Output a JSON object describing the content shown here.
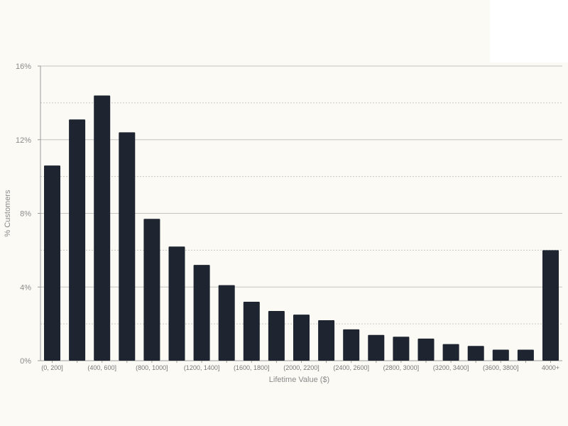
{
  "chart_data": {
    "type": "bar",
    "title": "",
    "xlabel": "Lifetime Value ($)",
    "ylabel": "% Customers",
    "ylim": [
      0,
      16
    ],
    "yticks": [
      0,
      4,
      8,
      12,
      16
    ],
    "ytick_labels": [
      "0%",
      "4%",
      "8%",
      "12%",
      "16%"
    ],
    "minor_gridlines": [
      2,
      6,
      10,
      14
    ],
    "grid": true,
    "legend": "none",
    "bar_color": "#1e2530",
    "categories": [
      "(0, 200]",
      "(200, 400]",
      "(400, 600]",
      "(600, 800]",
      "(800, 1000]",
      "(1000, 1200]",
      "(1200, 1400]",
      "(1400, 1600]",
      "(1600, 1800]",
      "(1800, 2000]",
      "(2000, 2200]",
      "(2200, 2400]",
      "(2400, 2600]",
      "(2600, 2800]",
      "(2800, 3000]",
      "(3000, 3200]",
      "(3200, 3400]",
      "(3400, 3600]",
      "(3600, 3800]",
      "(3800, 4000]",
      "4000+"
    ],
    "visible_tick_labels": [
      "(0, 200]",
      "",
      "(400, 600]",
      "",
      "(800, 1000]",
      "",
      "(1200, 1400]",
      "",
      "(1600, 1800]",
      "",
      "(2000, 2200]",
      "",
      "(2400, 2600]",
      "",
      "(2800, 3000]",
      "",
      "(3200, 3400]",
      "",
      "(3600, 3800]",
      "",
      "4000+"
    ],
    "values": [
      10.6,
      13.1,
      14.4,
      12.4,
      7.7,
      6.2,
      5.2,
      4.1,
      3.2,
      2.7,
      2.5,
      2.2,
      1.7,
      1.4,
      1.3,
      1.2,
      0.9,
      0.8,
      0.6,
      0.6,
      6.0
    ]
  }
}
